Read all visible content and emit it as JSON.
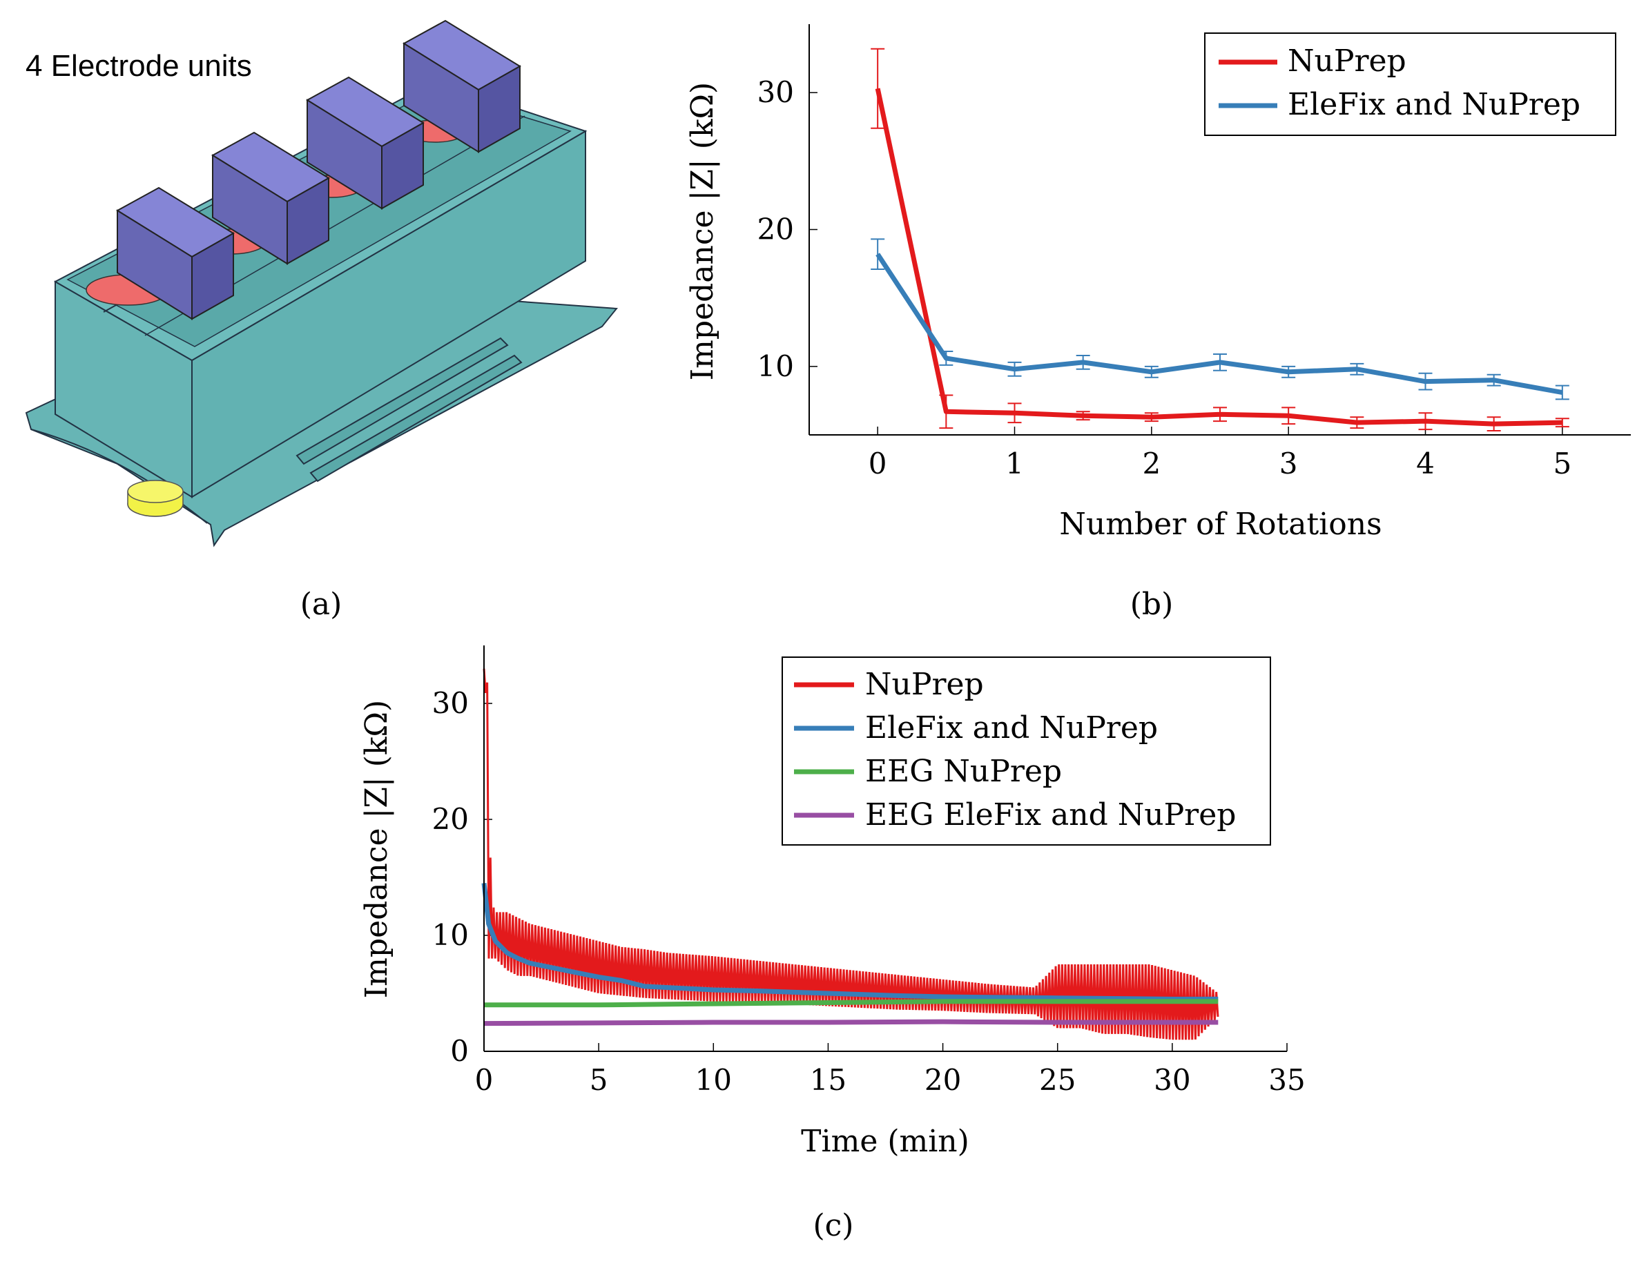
{
  "panel_a": {
    "callout": "4 Electrode units",
    "caption": "(a)"
  },
  "chart_data": [
    {
      "type": "line",
      "caption": "(b)",
      "xlabel": "Number of Rotations",
      "ylabel": "Impedance |Z| (kΩ)",
      "xlim": [
        -0.5,
        5.5
      ],
      "ylim": [
        5,
        35
      ],
      "xticks": [
        0,
        1,
        2,
        3,
        4,
        5
      ],
      "yticks": [
        10,
        20,
        30
      ],
      "legend_position": "top-right",
      "series": [
        {
          "name": "NuPrep",
          "color": "#e31a1c",
          "x": [
            0,
            0.5,
            1,
            1.5,
            2,
            2.5,
            3,
            3.5,
            4,
            4.5,
            5
          ],
          "y": [
            30.3,
            6.7,
            6.6,
            6.4,
            6.3,
            6.5,
            6.4,
            5.9,
            6.0,
            5.8,
            5.9
          ],
          "err": [
            2.9,
            1.2,
            0.7,
            0.3,
            0.3,
            0.5,
            0.6,
            0.4,
            0.6,
            0.5,
            0.3
          ]
        },
        {
          "name": "EleFix and NuPrep",
          "color": "#377eb8",
          "x": [
            0,
            0.5,
            1,
            1.5,
            2,
            2.5,
            3,
            3.5,
            4,
            4.5,
            5
          ],
          "y": [
            18.2,
            10.6,
            9.8,
            10.3,
            9.6,
            10.3,
            9.6,
            9.8,
            8.9,
            9.0,
            8.1
          ],
          "err": [
            1.1,
            0.5,
            0.5,
            0.5,
            0.4,
            0.6,
            0.4,
            0.4,
            0.6,
            0.4,
            0.5
          ]
        }
      ]
    },
    {
      "type": "line",
      "caption": "(c)",
      "xlabel": "Time (min)",
      "ylabel": "Impedance |Z| (kΩ)",
      "xlim": [
        0,
        35
      ],
      "ylim": [
        0,
        35
      ],
      "xticks": [
        0,
        5,
        10,
        15,
        20,
        25,
        30,
        35
      ],
      "yticks": [
        0,
        10,
        20,
        30
      ],
      "legend_position": "top-right",
      "series": [
        {
          "name": "NuPrep",
          "color": "#e31a1c",
          "style": "oscillating-band",
          "x": [
            0,
            0.1,
            0.2,
            0.3,
            0.5,
            1,
            1.5,
            2,
            3,
            4,
            5,
            6,
            7,
            8,
            10,
            12,
            14,
            16,
            18,
            20,
            22,
            24,
            25,
            26,
            27,
            28,
            29,
            30,
            31,
            32
          ],
          "high": [
            33,
            32,
            31.5,
            13,
            12,
            12,
            11.5,
            11,
            10.5,
            10,
            9.5,
            9,
            8.8,
            8.5,
            8.2,
            7.8,
            7.4,
            7,
            6.6,
            6.2,
            5.8,
            5.5,
            7.5,
            7.5,
            7.5,
            7.5,
            7.5,
            7,
            6.5,
            5
          ],
          "low": [
            33,
            30,
            8,
            8,
            8,
            7,
            6.5,
            6.5,
            6,
            5.5,
            5,
            4.8,
            4.6,
            4.5,
            4.3,
            4.2,
            4,
            3.8,
            3.6,
            3.5,
            3.3,
            3.2,
            2,
            2,
            1.5,
            1.5,
            1.2,
            1,
            1,
            3
          ]
        },
        {
          "name": "EleFix and NuPrep",
          "color": "#377eb8",
          "x": [
            0,
            0.2,
            0.5,
            1,
            1.5,
            2,
            3,
            4,
            5,
            6,
            7,
            8,
            10,
            12,
            15,
            18,
            20,
            25,
            30,
            32
          ],
          "y": [
            14.5,
            11,
            9.5,
            8.5,
            8,
            7.6,
            7.2,
            6.8,
            6.4,
            6.1,
            5.6,
            5.5,
            5.3,
            5.2,
            5.0,
            4.8,
            4.7,
            4.6,
            4.5,
            4.5
          ]
        },
        {
          "name": "EEG NuPrep",
          "color": "#4daf4a",
          "x": [
            0,
            5,
            10,
            15,
            20,
            25,
            30,
            32
          ],
          "y": [
            4.0,
            4.0,
            4.1,
            4.2,
            4.3,
            4.3,
            4.3,
            4.3
          ]
        },
        {
          "name": "EEG EleFix and NuPrep",
          "color": "#984ea3",
          "x": [
            0,
            5,
            10,
            15,
            20,
            25,
            30,
            32
          ],
          "y": [
            2.4,
            2.45,
            2.5,
            2.5,
            2.55,
            2.5,
            2.5,
            2.5
          ]
        }
      ]
    }
  ]
}
